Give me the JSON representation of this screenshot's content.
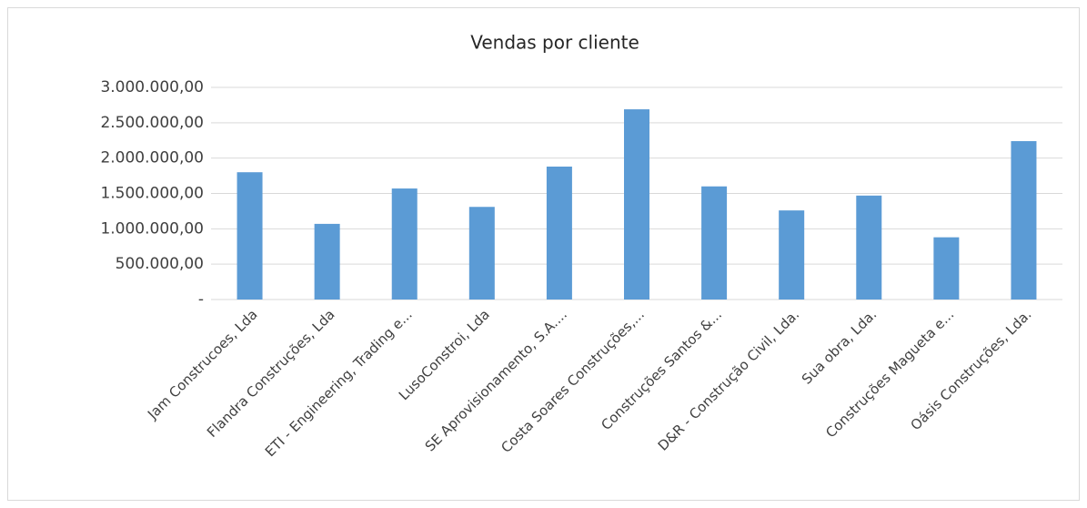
{
  "chart_data": {
    "type": "bar",
    "title": "Vendas por cliente",
    "categories": [
      "Jam Construcoes, Lda",
      "Flandra Construções, Lda",
      "ETI - Engineering, Trading e...",
      "LusoConstroi, Lda",
      "SE Aprovisionamento, S.A....",
      "Costa Soares Construções,...",
      "Construções Santos &...",
      "D&R - Construção Civil, Lda.",
      "Sua obra, Lda.",
      "Construções Magueta e...",
      "Oásis Construções, Lda."
    ],
    "values": [
      1800000,
      1070000,
      1570000,
      1310000,
      1880000,
      2690000,
      1600000,
      1260000,
      1470000,
      880000,
      2240000
    ],
    "color": "#5b9bd5",
    "ylim": [
      0,
      3000000
    ],
    "yticks": [
      {
        "value": 0,
        "label": "-"
      },
      {
        "value": 500000,
        "label": "500.000,00"
      },
      {
        "value": 1000000,
        "label": "1.000.000,00"
      },
      {
        "value": 1500000,
        "label": "1.500.000,00"
      },
      {
        "value": 2000000,
        "label": "2.000.000,00"
      },
      {
        "value": 2500000,
        "label": "2.500.000,00"
      },
      {
        "value": 3000000,
        "label": "3.000.000,00"
      }
    ],
    "grid": true
  }
}
